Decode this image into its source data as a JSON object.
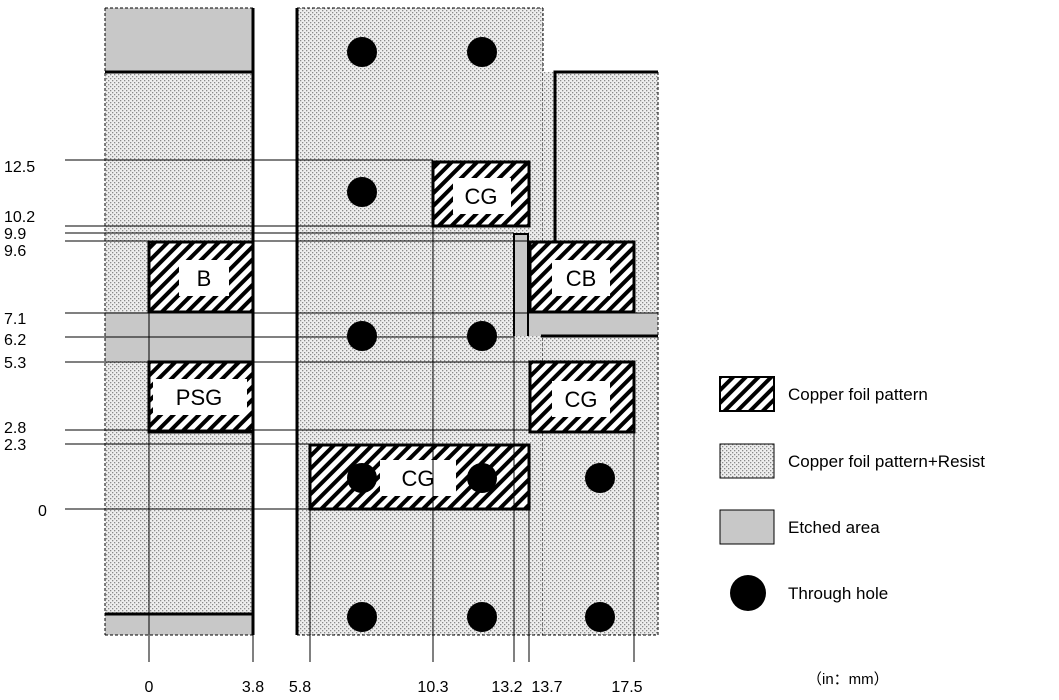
{
  "y_ticks": [
    "12.5",
    "10.2",
    "9.9",
    "9.6",
    "7.1",
    "6.2",
    "5.3",
    "2.8",
    "2.3",
    "0"
  ],
  "x_ticks": [
    "0",
    "3.8",
    "5.8",
    "10.3",
    "13.2",
    "13.7",
    "17.5"
  ],
  "pads": {
    "b": "B",
    "psg": "PSG",
    "cg_top": "CG",
    "cb": "CB",
    "cg_right": "CG",
    "cg_bottom": "CG"
  },
  "legend": {
    "copper": "Copper foil pattern",
    "copper_resist": "Copper foil pattern+Resist",
    "etched": "Etched area",
    "through_hole": "Through hole"
  },
  "unit": "（in：mm）",
  "colors": {
    "etched": "#c8c8c8",
    "resist_bg": "#eeeeee",
    "dot": "#888888",
    "line": "#000000"
  },
  "icons": {
    "hatch": "diagonal-hatch-swatch",
    "dots": "dotted-swatch",
    "etched": "grey-swatch",
    "hole": "filled-circle"
  }
}
